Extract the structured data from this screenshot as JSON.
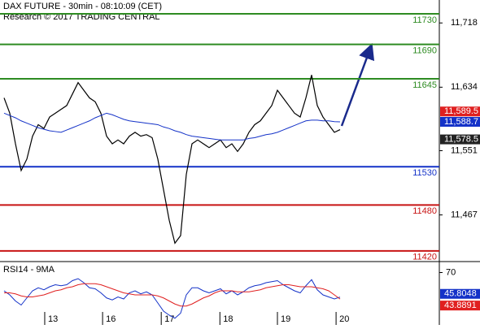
{
  "chart_data": {
    "type": "price-levels",
    "title": "DAX FUTURE - 30min - 08:10:09 (CET)",
    "subtitle": "Research © 2017 TRADING CENTRAL",
    "xlim": [
      -0.714,
      76.43
    ],
    "xticks": [
      {
        "value": 7.14,
        "label": "13"
      },
      {
        "value": 17.3,
        "label": "16"
      },
      {
        "value": 27.6,
        "label": "17"
      },
      {
        "value": 37.9,
        "label": "18"
      },
      {
        "value": 48,
        "label": "19"
      },
      {
        "value": 58.3,
        "label": "20"
      }
    ],
    "ylim": [
      11406,
      11748
    ],
    "yticks": [
      {
        "value": 11718,
        "label": "11,718"
      },
      {
        "value": 11634,
        "label": "11,634"
      },
      {
        "value": 11551,
        "label": "11,551"
      },
      {
        "value": 11467,
        "label": "11,467"
      }
    ],
    "levels": [
      {
        "value": 11730,
        "color": "#2e8b22"
      },
      {
        "value": 11690,
        "color": "#2e8b22"
      },
      {
        "value": 11645,
        "color": "#2e8b22"
      },
      {
        "value": 11530,
        "color": "#1432c8"
      },
      {
        "value": 11480,
        "color": "#c81414"
      },
      {
        "value": 11420,
        "color": "#c81414"
      }
    ],
    "series": [
      {
        "name": "Price",
        "color": "#000000",
        "values": [
          11620,
          11600,
          11560,
          11525,
          11540,
          11570,
          11585,
          11580,
          11595,
          11600,
          11605,
          11610,
          11625,
          11640,
          11630,
          11620,
          11615,
          11600,
          11570,
          11560,
          11565,
          11560,
          11570,
          11575,
          11570,
          11572,
          11568,
          11540,
          11500,
          11460,
          11430,
          11440,
          11520,
          11560,
          11565,
          11560,
          11555,
          11560,
          11565,
          11555,
          11560,
          11550,
          11560,
          11575,
          11585,
          11590,
          11600,
          11610,
          11630,
          11620,
          11610,
          11600,
          11595,
          11620,
          11650,
          11610,
          11595,
          11585,
          11575,
          11578.5
        ]
      },
      {
        "name": "MA",
        "color": "#1432c8",
        "values": [
          11600,
          11597,
          11594,
          11590,
          11587,
          11584,
          11581,
          11579,
          11577,
          11576,
          11575,
          11578,
          11581,
          11584,
          11587,
          11590,
          11594,
          11597,
          11600,
          11598,
          11595,
          11592,
          11590,
          11589,
          11588,
          11587,
          11586,
          11585,
          11582,
          11580,
          11577,
          11575,
          11572,
          11570,
          11569,
          11568,
          11567,
          11566,
          11565,
          11565,
          11565,
          11565,
          11565,
          11567,
          11568,
          11570,
          11572,
          11573,
          11575,
          11578,
          11581,
          11584,
          11587,
          11590,
          11591,
          11591,
          11590,
          11590,
          11589,
          11588.7
        ]
      }
    ],
    "price_tags": [
      {
        "label": "11,589.5",
        "value": 11589.5,
        "color": "#e02020"
      },
      {
        "label": "11,588.7",
        "value": 11588.7,
        "color": "#1432c8"
      },
      {
        "label": "11,578.5",
        "value": 11578.5,
        "color": "#222222"
      }
    ],
    "rsi": {
      "title": "RSI14 - 9MA",
      "ylim": [
        20,
        80
      ],
      "yticks": [
        70
      ],
      "series": [
        {
          "name": "RSI14",
          "color": "#1432c8",
          "values": [
            52,
            48,
            42,
            38,
            45,
            52,
            55,
            53,
            56,
            58,
            57,
            58,
            62,
            64,
            60,
            55,
            54,
            50,
            45,
            43,
            46,
            44,
            50,
            52,
            49,
            51,
            48,
            40,
            32,
            28,
            25,
            30,
            48,
            55,
            55,
            52,
            50,
            52,
            54,
            49,
            52,
            48,
            51,
            55,
            57,
            58,
            60,
            61,
            62,
            58,
            55,
            52,
            50,
            57,
            63,
            53,
            48,
            46,
            44,
            45.8048
          ]
        },
        {
          "name": "MA9",
          "color": "#e02020",
          "values": [
            50,
            50,
            49,
            47,
            46,
            46,
            47,
            48,
            50,
            52,
            53,
            55,
            56,
            58,
            59,
            59,
            59,
            58,
            56,
            54,
            52,
            50,
            49,
            48,
            48,
            48,
            48,
            47,
            45,
            42,
            39,
            37,
            37,
            39,
            42,
            45,
            47,
            50,
            52,
            52,
            52,
            51,
            51,
            51,
            52,
            53,
            55,
            56,
            57,
            58,
            58,
            57,
            56,
            56,
            56,
            55,
            54,
            52,
            48,
            43.8891
          ]
        }
      ],
      "tags": [
        {
          "label": "45.8048",
          "value": 45.8048,
          "color": "#1432c8"
        },
        {
          "label": "43.8891",
          "value": 43.8891,
          "color": "#e02020"
        }
      ]
    }
  }
}
